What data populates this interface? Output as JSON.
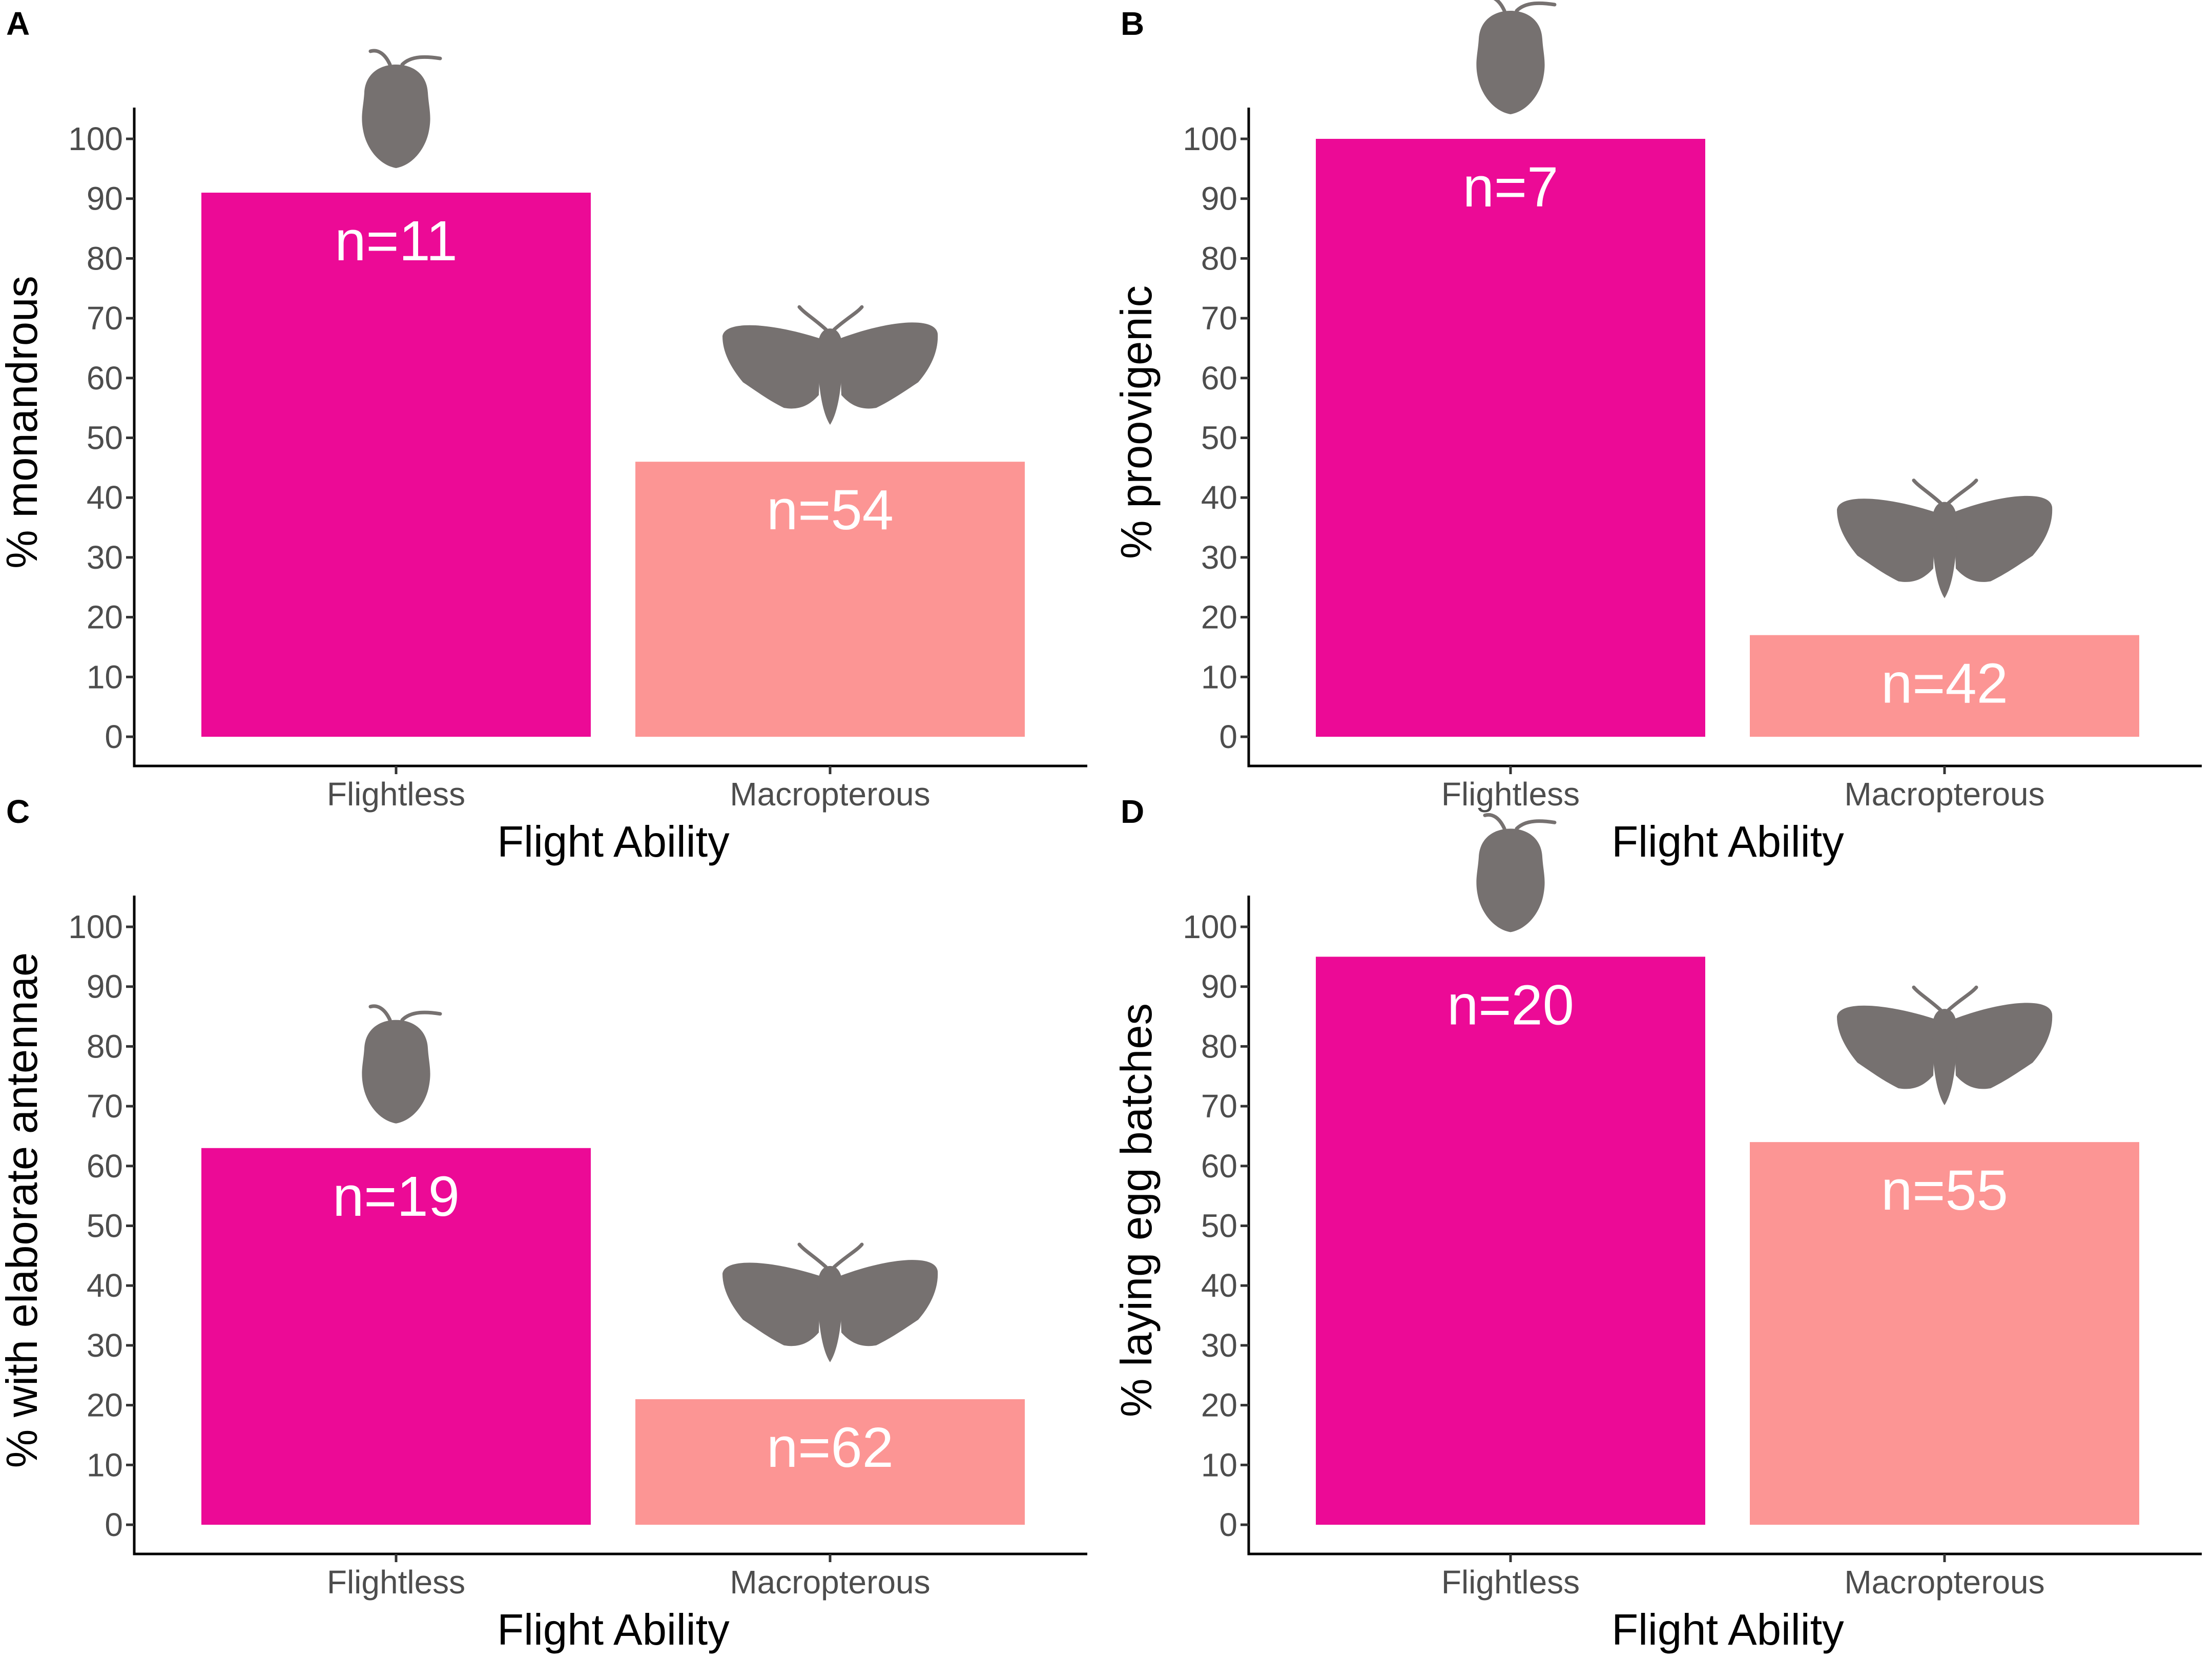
{
  "figure": {
    "colors": {
      "flightless": "#ec0a96",
      "macropterous": "#fc9594",
      "silhouette": "#767170"
    },
    "icons": {
      "flightless": "flightless-moth-silhouette-icon",
      "macropterous": "winged-moth-silhouette-icon"
    }
  },
  "chart_data": [
    {
      "panel": "A",
      "type": "bar",
      "categories": [
        "Flightless",
        "Macropterous"
      ],
      "values": [
        91,
        46
      ],
      "bar_labels": [
        "n=11",
        "n=54"
      ],
      "xlabel": "Flight Ability",
      "ylabel": "% monandrous",
      "ylim": [
        0,
        100
      ],
      "yticks": [
        "0",
        "10",
        "20",
        "30",
        "40",
        "50",
        "60",
        "70",
        "80",
        "90",
        "100"
      ]
    },
    {
      "panel": "B",
      "type": "bar",
      "categories": [
        "Flightless",
        "Macropterous"
      ],
      "values": [
        100,
        17
      ],
      "bar_labels": [
        "n=7",
        "n=42"
      ],
      "xlabel": "Flight Ability",
      "ylabel": "% proovigenic",
      "ylim": [
        0,
        100
      ],
      "yticks": [
        "0",
        "10",
        "20",
        "30",
        "40",
        "50",
        "60",
        "70",
        "80",
        "90",
        "100"
      ]
    },
    {
      "panel": "C",
      "type": "bar",
      "categories": [
        "Flightless",
        "Macropterous"
      ],
      "values": [
        63,
        21
      ],
      "bar_labels": [
        "n=19",
        "n=62"
      ],
      "xlabel": "Flight Ability",
      "ylabel": "% with elaborate antennae",
      "ylim": [
        0,
        100
      ],
      "yticks": [
        "0",
        "10",
        "20",
        "30",
        "40",
        "50",
        "60",
        "70",
        "80",
        "90",
        "100"
      ]
    },
    {
      "panel": "D",
      "type": "bar",
      "categories": [
        "Flightless",
        "Macropterous"
      ],
      "values": [
        95,
        64
      ],
      "bar_labels": [
        "n=20",
        "n=55"
      ],
      "xlabel": "Flight Ability",
      "ylabel": "% laying egg batches",
      "ylim": [
        0,
        100
      ],
      "yticks": [
        "0",
        "10",
        "20",
        "30",
        "40",
        "50",
        "60",
        "70",
        "80",
        "90",
        "100"
      ]
    }
  ]
}
